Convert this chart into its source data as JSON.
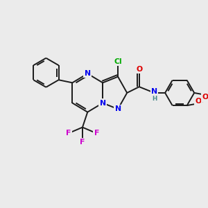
{
  "background_color": "#ebebeb",
  "bond_color": "#1a1a1a",
  "colors": {
    "N": "#0000ee",
    "O": "#dd0000",
    "Cl": "#00aa00",
    "F": "#cc00cc",
    "H": "#4a8a8a"
  },
  "lw": 1.4,
  "fs": 7.8
}
